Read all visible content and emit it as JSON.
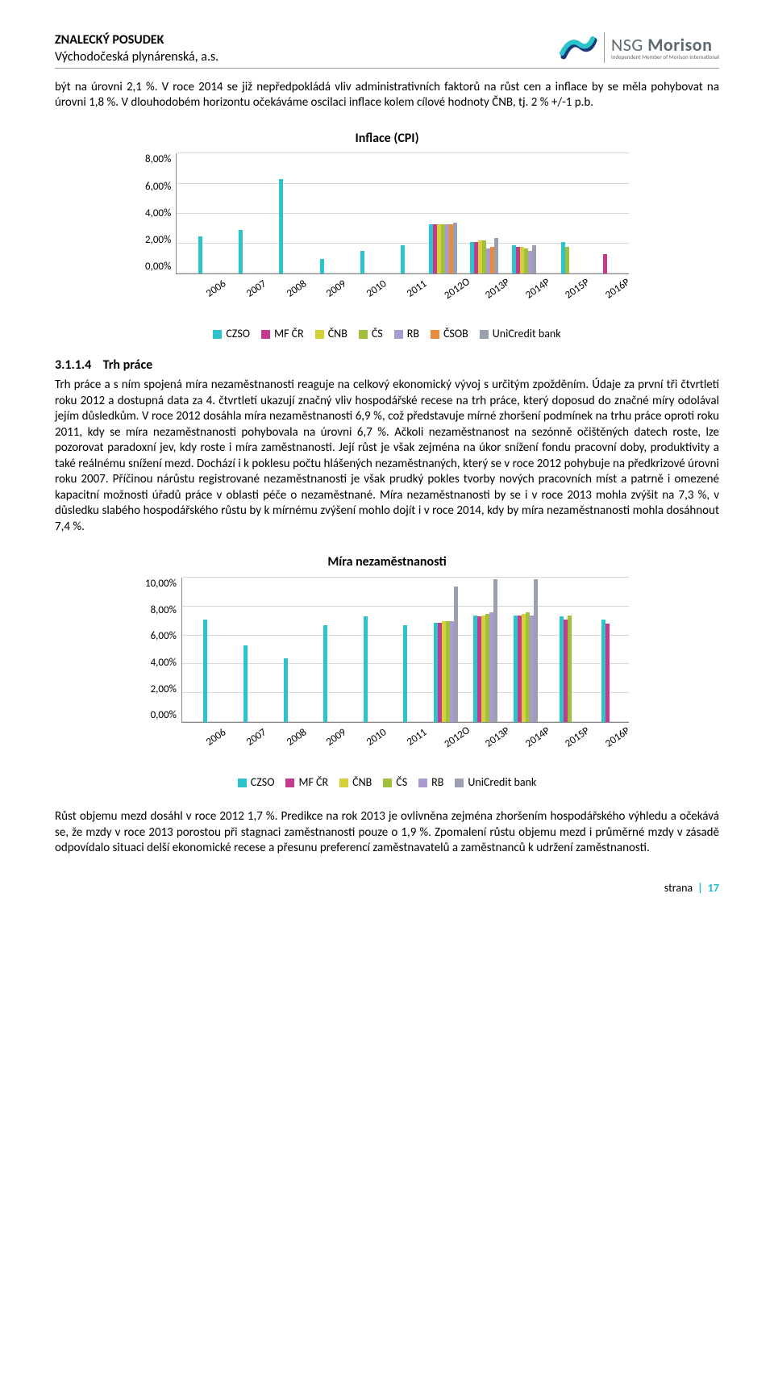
{
  "header": {
    "title": "ZNALECKÝ POSUDEK",
    "subtitle": "Východočeská plynárenská, a.s.",
    "brand_light": "NSG",
    "brand_bold": "Morison",
    "brand_sub": "Independent Member of Morison International"
  },
  "para1": "být na úrovni 2,1 %. V roce 2014 se již nepředpokládá vliv administrativních faktorů na růst cen a inflace by se měla pohybovat na úrovni 1,8 %. V dlouhodobém horizontu očekáváme oscilaci inflace kolem cílové hodnoty ČNB, tj. 2 % +/-1 p.b.",
  "section": {
    "num": "3.1.1.4",
    "title": "Trh práce"
  },
  "para2": "Trh práce a s ním spojená míra nezaměstnanosti reaguje na celkový ekonomický vývoj s určitým zpožděním. Údaje za první tři čtvrtletí roku 2012 a dostupná data za 4. čtvrtletí ukazují značný vliv hospodářské recese na trh práce, který doposud do značné míry odolával jejím důsledkům. V roce 2012 dosáhla míra nezaměstnanosti 6,9 %, což představuje mírné zhoršení podmínek na trhu práce oproti roku 2011, kdy se míra nezaměstnanosti pohybovala na úrovni 6,7 %. Ačkoli nezaměstnanost na sezónně očištěných datech roste, lze pozorovat paradoxní jev, kdy roste i míra zaměstnanosti. Její růst je však zejména na úkor snížení fondu pracovní doby, produktivity a také reálnému snížení mezd. Dochází i k poklesu počtu hlášených nezaměstnaných, který se v roce 2012 pohybuje na předkrizové úrovni roku 2007. Příčinou nárůstu registrované nezaměstnanosti je však prudký pokles tvorby nových pracovních míst a patrně i omezené kapacitní možnosti úřadů práce v oblasti péče o nezaměstnané. Míra nezaměstnanosti by se i v roce 2013 mohla zvýšit na 7,3 %, v důsledku slabého hospodářského růstu by k mírnému zvýšení mohlo dojít i v roce 2014, kdy by míra nezaměstnanosti mohla dosáhnout 7,4 %.",
  "para3": "Růst objemu mezd dosáhl v roce 2012 1,7 %. Predikce na rok 2013 je ovlivněna zejména zhoršením hospodářského výhledu a očekává se, že mzdy v roce 2013 porostou při stagnaci zaměstnanosti pouze o 1,9 %. Zpomalení růstu objemu mezd i průměrné mzdy v zásadě odpovídalo situaci delší ekonomické recese a přesunu preferencí zaměstnavatelů a zaměstnanců k udržení zaměstnanosti.",
  "colors": {
    "czso": "#2bc4cb",
    "mfcr": "#c43b8e",
    "cnb": "#d4d03a",
    "cs": "#a0c03a",
    "rb": "#a99bd0",
    "csob": "#e88b3a",
    "uni": "#9aa0b0",
    "grid": "#d9d9d9",
    "accent": "#1ec0c7"
  },
  "chart1": {
    "title": "Inflace (CPI)",
    "ylim": [
      0,
      8
    ],
    "ytick_step": 2,
    "yticks": [
      "8,00%",
      "6,00%",
      "4,00%",
      "2,00%",
      "0,00%"
    ],
    "categories": [
      "2006",
      "2007",
      "2008",
      "2009",
      "2010",
      "2011",
      "2012O",
      "2013P",
      "2014P",
      "2015P",
      "2016P"
    ],
    "series": [
      "czso",
      "mfcr",
      "cnb",
      "cs",
      "rb",
      "csob",
      "uni"
    ],
    "legend": [
      {
        "key": "czso",
        "label": "CZSO"
      },
      {
        "key": "mfcr",
        "label": "MF ČR"
      },
      {
        "key": "cnb",
        "label": "ČNB"
      },
      {
        "key": "cs",
        "label": "ČS"
      },
      {
        "key": "rb",
        "label": "RB"
      },
      {
        "key": "csob",
        "label": "ČSOB"
      },
      {
        "key": "uni",
        "label": "UniCredit bank"
      }
    ],
    "data": {
      "2006": {
        "czso": 2.5
      },
      "2007": {
        "czso": 2.9
      },
      "2008": {
        "czso": 6.3
      },
      "2009": {
        "czso": 1.0
      },
      "2010": {
        "czso": 1.5
      },
      "2011": {
        "czso": 1.9
      },
      "2012O": {
        "czso": 3.3,
        "mfcr": 3.3,
        "cnb": 3.3,
        "cs": 3.3,
        "rb": 3.3,
        "csob": 3.3,
        "uni": 3.4
      },
      "2013P": {
        "czso": 2.1,
        "mfcr": 2.1,
        "cnb": 2.2,
        "cs": 2.2,
        "rb": 1.7,
        "csob": 1.8,
        "uni": 2.4
      },
      "2014P": {
        "czso": 1.9,
        "mfcr": 1.8,
        "cnb": 1.8,
        "cs": 1.7,
        "rb": 1.5,
        "uni": 1.9
      },
      "2015P": {
        "czso": 2.1,
        "cs": 1.8
      },
      "2016P": {
        "mfcr": 1.3
      }
    }
  },
  "chart2": {
    "title": "Míra nezaměstnanosti",
    "ylim": [
      0,
      10
    ],
    "ytick_step": 2,
    "yticks": [
      "10,00%",
      "8,00%",
      "6,00%",
      "4,00%",
      "2,00%",
      "0,00%"
    ],
    "categories": [
      "2006",
      "2007",
      "2008",
      "2009",
      "2010",
      "2011",
      "2012O",
      "2013P",
      "2014P",
      "2015P",
      "2016P"
    ],
    "series": [
      "czso",
      "mfcr",
      "cnb",
      "cs",
      "rb",
      "uni"
    ],
    "legend": [
      {
        "key": "czso",
        "label": "CZSO"
      },
      {
        "key": "mfcr",
        "label": "MF ČR"
      },
      {
        "key": "cnb",
        "label": "ČNB"
      },
      {
        "key": "cs",
        "label": "ČS"
      },
      {
        "key": "rb",
        "label": "RB"
      },
      {
        "key": "uni",
        "label": "UniCredit bank"
      }
    ],
    "data": {
      "2006": {
        "czso": 7.1
      },
      "2007": {
        "czso": 5.3
      },
      "2008": {
        "czso": 4.4
      },
      "2009": {
        "czso": 6.7
      },
      "2010": {
        "czso": 7.3
      },
      "2011": {
        "czso": 6.7
      },
      "2012O": {
        "czso": 6.9,
        "mfcr": 6.9,
        "cnb": 7.0,
        "cs": 7.0,
        "rb": 7.0,
        "uni": 9.4
      },
      "2013P": {
        "czso": 7.4,
        "mfcr": 7.3,
        "cnb": 7.4,
        "cs": 7.5,
        "rb": 7.6,
        "uni": 9.9
      },
      "2014P": {
        "czso": 7.4,
        "mfcr": 7.4,
        "cnb": 7.5,
        "cs": 7.6,
        "rb": 7.4,
        "uni": 9.9
      },
      "2015P": {
        "czso": 7.3,
        "mfcr": 7.1,
        "cs": 7.4
      },
      "2016P": {
        "czso": 7.1,
        "mfcr": 6.8
      }
    }
  },
  "footer": {
    "label": "strana",
    "page": "17"
  }
}
